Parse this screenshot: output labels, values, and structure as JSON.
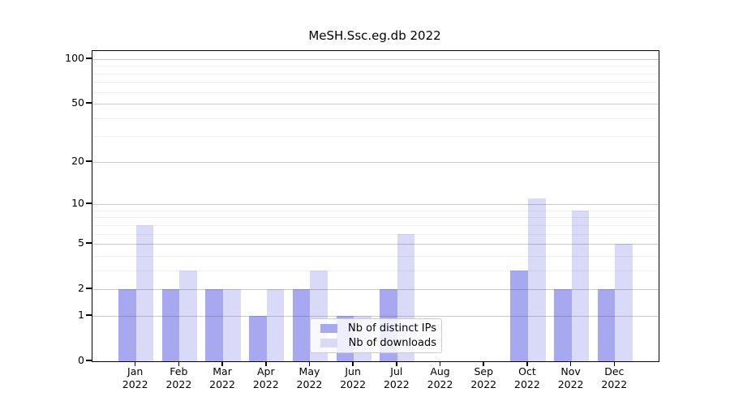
{
  "header": {
    "title": "MeSH.Ssc.eg.db 2022"
  },
  "colors": {
    "ips_bar": "#a8a8f0",
    "downloads_bar": "#d9d9f8",
    "axis": "#000000",
    "grid_major": "#c8c8c8",
    "grid_minor": "#ececec",
    "legend_border": "#cccccc",
    "background": "#ffffff"
  },
  "legend": {
    "items": [
      {
        "label": "Nb of distinct IPs",
        "color": "#a8a8f0"
      },
      {
        "label": "Nb of downloads",
        "color": "#d9d9f8"
      }
    ]
  },
  "chart_data": {
    "type": "bar",
    "title": "MeSH.Ssc.eg.db 2022",
    "months": [
      "Jan",
      "Feb",
      "Mar",
      "Apr",
      "May",
      "Jun",
      "Jul",
      "Aug",
      "Sep",
      "Oct",
      "Nov",
      "Dec"
    ],
    "year": "2022",
    "categories": [
      "Jan 2022",
      "Feb 2022",
      "Mar 2022",
      "Apr 2022",
      "May 2022",
      "Jun 2022",
      "Jul 2022",
      "Aug 2022",
      "Sep 2022",
      "Oct 2022",
      "Nov 2022",
      "Dec 2022"
    ],
    "series": [
      {
        "name": "Nb of distinct IPs",
        "color": "#a8a8f0",
        "values": [
          2,
          2,
          2,
          1,
          2,
          1,
          2,
          0,
          0,
          3,
          2,
          2
        ]
      },
      {
        "name": "Nb of downloads",
        "color": "#d9d9f8",
        "values": [
          7,
          3,
          2,
          2,
          3,
          1,
          6,
          0,
          0,
          11,
          9,
          5
        ]
      }
    ],
    "xlabel": "",
    "ylabel": "",
    "yscale": "log1p",
    "ylim": [
      0,
      112
    ],
    "yticks_major": [
      0,
      1,
      2,
      5,
      10,
      20,
      50,
      100
    ],
    "yticks_minor": [
      3,
      4,
      6,
      7,
      8,
      9,
      30,
      40,
      60,
      70,
      80,
      90
    ],
    "grid": true,
    "legend_position": "lower-center"
  }
}
